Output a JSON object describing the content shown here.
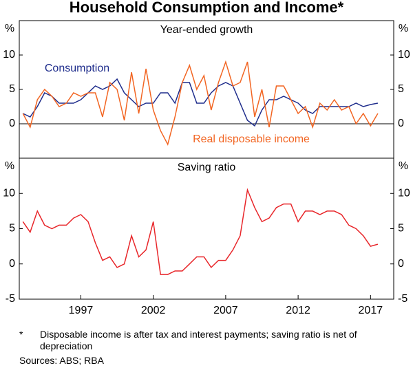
{
  "title": "Household Consumption and Income*",
  "notes": {
    "marker": "*",
    "text": "Disposable income is after tax and interest payments; saving ratio is net of depreciation",
    "sources": "Sources: ABS; RBA"
  },
  "chart_data": [
    {
      "type": "line",
      "subtitle": "Year-ended growth",
      "y_unit": "%",
      "x": [
        1993,
        1993.5,
        1994,
        1994.5,
        1995,
        1995.5,
        1996,
        1996.5,
        1997,
        1997.5,
        1998,
        1998.5,
        1999,
        1999.5,
        2000,
        2000.5,
        2001,
        2001.5,
        2002,
        2002.5,
        2003,
        2003.5,
        2004,
        2004.5,
        2005,
        2005.5,
        2006,
        2006.5,
        2007,
        2007.5,
        2008,
        2008.5,
        2009,
        2009.5,
        2010,
        2010.5,
        2011,
        2011.5,
        2012,
        2012.5,
        2013,
        2013.5,
        2014,
        2014.5,
        2015,
        2015.5,
        2016,
        2016.5,
        2017,
        2017.5
      ],
      "xlim": [
        1992.75,
        2018.6
      ],
      "ylim": [
        -5,
        15
      ],
      "yticks": [
        0,
        5,
        10
      ],
      "zero_line": true,
      "series": [
        {
          "name": "Consumption",
          "color": "#1f2d8c",
          "values": [
            1.5,
            1,
            2.5,
            4.5,
            4,
            3,
            3,
            3,
            3.5,
            4.5,
            5.5,
            5,
            5.5,
            6.5,
            4.5,
            3.5,
            2.5,
            3,
            3,
            4.5,
            4.5,
            3,
            6,
            6,
            3,
            3,
            4.5,
            5.5,
            6,
            5.5,
            3,
            0.5,
            -0.3,
            2,
            3.5,
            3.5,
            4,
            3.5,
            3,
            2,
            1.5,
            2.5,
            2.5,
            2.5,
            2.5,
            2.5,
            3,
            2.5,
            2.8,
            3
          ]
        },
        {
          "name": "Real disposable income",
          "color": "#f26522",
          "values": [
            1.5,
            -0.5,
            3.5,
            5,
            4,
            2.5,
            3,
            4.5,
            4,
            4.5,
            4.5,
            1,
            6,
            5,
            0.5,
            7.5,
            1.5,
            8,
            2,
            -1,
            -3,
            1,
            6,
            8.5,
            5,
            7,
            2,
            6,
            9,
            5.5,
            6,
            9,
            1,
            5,
            -0.5,
            5.5,
            5.5,
            3.5,
            1.5,
            2.5,
            -0.5,
            3,
            2,
            3.5,
            2,
            2.5,
            0,
            1.5,
            -0.3,
            1.5
          ]
        }
      ]
    },
    {
      "type": "line",
      "subtitle": "Saving ratio",
      "y_unit": "%",
      "x": [
        1993,
        1993.5,
        1994,
        1994.5,
        1995,
        1995.5,
        1996,
        1996.5,
        1997,
        1997.5,
        1998,
        1998.5,
        1999,
        1999.5,
        2000,
        2000.5,
        2001,
        2001.5,
        2002,
        2002.5,
        2003,
        2003.5,
        2004,
        2004.5,
        2005,
        2005.5,
        2006,
        2006.5,
        2007,
        2007.5,
        2008,
        2008.5,
        2009,
        2009.5,
        2010,
        2010.5,
        2011,
        2011.5,
        2012,
        2012.5,
        2013,
        2013.5,
        2014,
        2014.5,
        2015,
        2015.5,
        2016,
        2016.5,
        2017,
        2017.5
      ],
      "xlim": [
        1992.75,
        2018.6
      ],
      "ylim": [
        -5,
        15
      ],
      "yticks": [
        -5,
        0,
        5,
        10
      ],
      "xticks": [
        1997,
        2002,
        2007,
        2012,
        2017
      ],
      "zero_line": false,
      "series": [
        {
          "color": "#e8262a",
          "values": [
            6,
            4.5,
            7.5,
            5.5,
            5,
            5.5,
            5.5,
            6.5,
            7,
            6,
            3,
            0.5,
            1,
            -0.5,
            0,
            4,
            1,
            2,
            6,
            -1.5,
            -1.5,
            -1,
            -1,
            0,
            1,
            1,
            -0.5,
            0.5,
            0.5,
            2,
            4,
            10.5,
            8,
            6,
            6.5,
            8,
            8.5,
            8.5,
            6,
            7.5,
            7.5,
            7,
            7.5,
            7.5,
            7,
            5.5,
            5,
            4,
            2.5,
            2.8
          ]
        }
      ]
    }
  ]
}
